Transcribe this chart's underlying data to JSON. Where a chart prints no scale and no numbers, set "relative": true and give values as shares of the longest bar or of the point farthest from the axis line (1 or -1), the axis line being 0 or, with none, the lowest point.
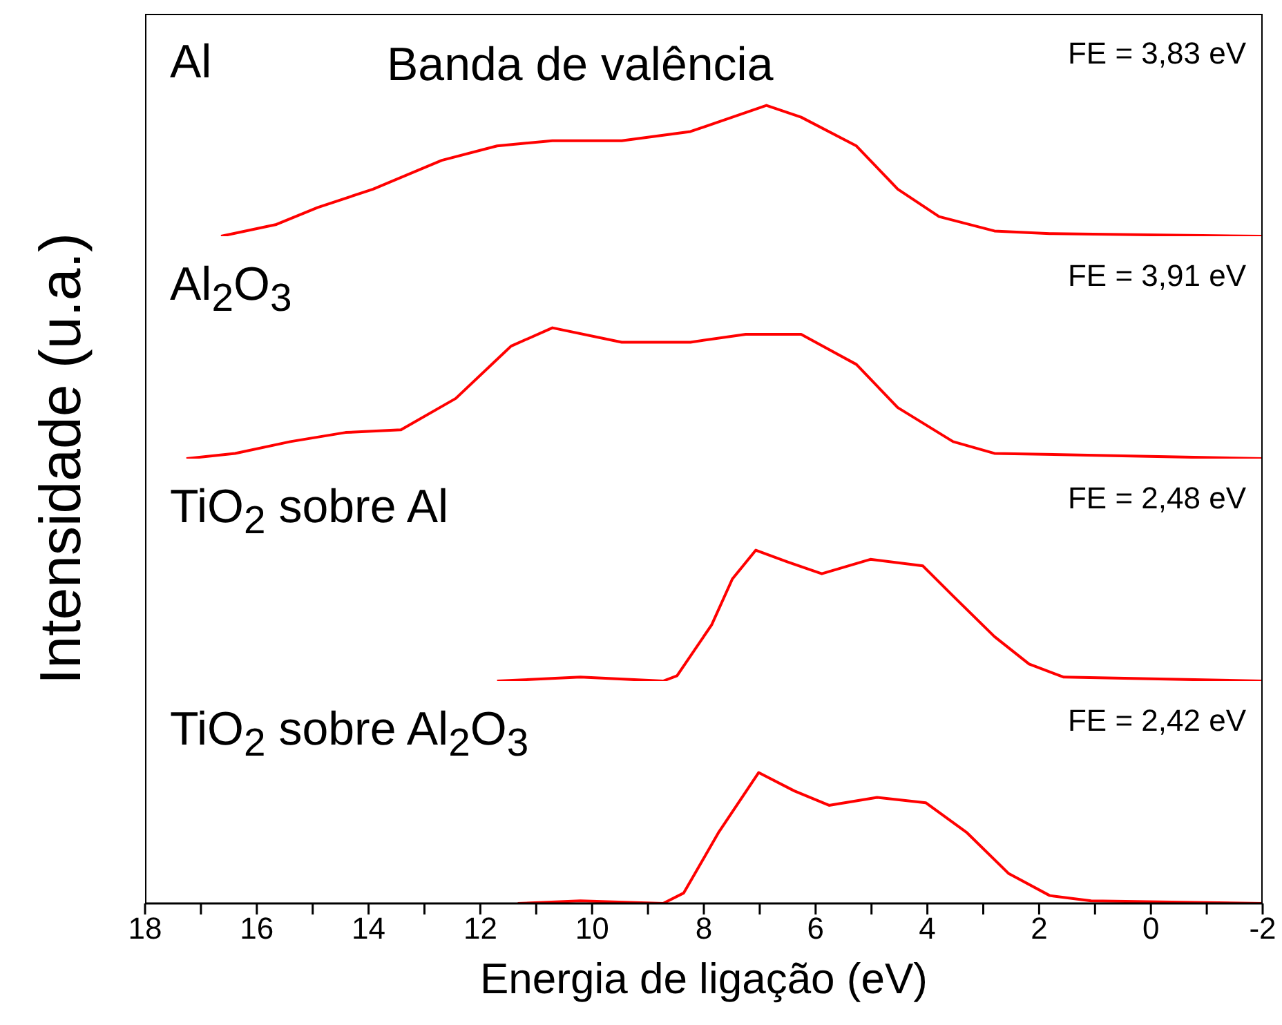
{
  "chart_data": [
    {
      "type": "line",
      "title": "Banda de valência",
      "ylabel": "Intensidade (u.a.)",
      "relative": true,
      "xlim": [
        18,
        -2
      ],
      "tick_labels": false,
      "annotations": [
        "FE = 3,83 eV"
      ],
      "series": [
        {
          "name": "Al",
          "color": "#ff0000",
          "x": [
            16.64,
            15.65,
            14.91,
            13.92,
            12.69,
            11.7,
            10.71,
            9.47,
            8.24,
            7.49,
            6.88,
            6.26,
            5.27,
            4.53,
            3.79,
            2.8,
            1.81,
            -2
          ],
          "values": [
            0,
            0.09,
            0.22,
            0.36,
            0.58,
            0.69,
            0.73,
            0.73,
            0.8,
            0.91,
            1,
            0.91,
            0.69,
            0.36,
            0.15,
            0.04,
            0.02,
            0
          ]
        }
      ]
    },
    {
      "type": "line",
      "relative": true,
      "xlim": [
        18,
        -2
      ],
      "tick_labels": false,
      "annotations": [
        "FE = 3,91 eV"
      ],
      "series": [
        {
          "name": "Al$_{2}$O$_{3}$",
          "color": "#ff0000",
          "x": [
            17.26,
            16.39,
            15.4,
            14.41,
            13.42,
            12.44,
            11.45,
            10.71,
            9.47,
            8.24,
            7.25,
            6.26,
            5.27,
            4.53,
            3.54,
            2.8,
            -2
          ],
          "values": [
            0,
            0.04,
            0.13,
            0.2,
            0.22,
            0.46,
            0.86,
            1,
            0.89,
            0.89,
            0.95,
            0.95,
            0.72,
            0.39,
            0.13,
            0.04,
            0
          ]
        }
      ]
    },
    {
      "type": "line",
      "relative": true,
      "xlim": [
        18,
        -2
      ],
      "tick_labels": false,
      "annotations": [
        "FE = 2,48 eV"
      ],
      "series": [
        {
          "name": "TiO$_{2}$ sobre Al",
          "color": "#ff0000",
          "x": [
            11.7,
            10.21,
            8.73,
            8.48,
            7.86,
            7.49,
            7.07,
            6.5,
            5.89,
            5.02,
            4.08,
            3.54,
            2.8,
            2.18,
            1.56,
            -2
          ],
          "values": [
            0,
            0.03,
            0,
            0.04,
            0.43,
            0.78,
            1,
            0.91,
            0.82,
            0.93,
            0.88,
            0.65,
            0.34,
            0.13,
            0.03,
            0
          ]
        }
      ]
    },
    {
      "type": "line",
      "xlabel": "Energia de ligação (eV)",
      "relative": true,
      "xlim": [
        18,
        -2
      ],
      "tick_labels": "x",
      "xticks": [
        18,
        {
          "value": 17,
          "label": null
        },
        16,
        {
          "value": 15,
          "label": null
        },
        14,
        {
          "value": 13,
          "label": null
        },
        12,
        {
          "value": 11,
          "label": null
        },
        10,
        {
          "value": 9,
          "label": null
        },
        8,
        {
          "value": 7,
          "label": null
        },
        6,
        {
          "value": 5,
          "label": null
        },
        4,
        {
          "value": 3,
          "label": null
        },
        2,
        {
          "value": 1,
          "label": null
        },
        0,
        {
          "value": -1,
          "label": null
        },
        -2
      ],
      "annotations": [
        "FE = 2,42 eV"
      ],
      "series": [
        {
          "name": "TiO$_{2}$ sobre Al$_{2}$O$_{3}$",
          "color": "#ff0000",
          "x": [
            11.33,
            10.21,
            8.73,
            8.36,
            7.74,
            7.02,
            6.38,
            5.76,
            4.9,
            4.03,
            3.29,
            2.55,
            1.81,
            1.07,
            -2
          ],
          "values": [
            0,
            0.02,
            0,
            0.08,
            0.54,
            1,
            0.86,
            0.75,
            0.81,
            0.77,
            0.54,
            0.23,
            0.06,
            0.02,
            0
          ]
        }
      ]
    }
  ]
}
